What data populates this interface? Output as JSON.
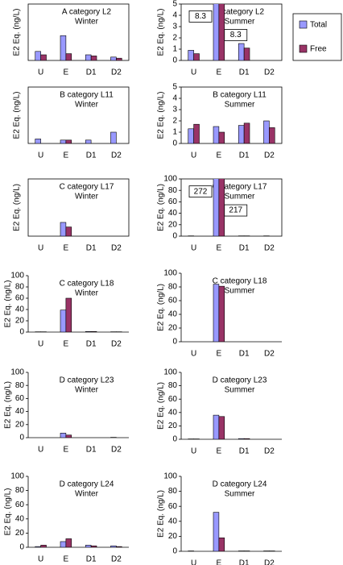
{
  "chart_data": [
    {
      "type": "bar",
      "title": "A category L2",
      "subtitle": "Winter",
      "ylabel": "E2 Eq. (ng/L)",
      "categories": [
        "U",
        "E",
        "D1",
        "D2"
      ],
      "ylim": [
        0,
        5
      ],
      "frame": true,
      "legend": "top-right",
      "series": [
        {
          "name": "Total",
          "color": "#9999ff",
          "values": [
            0.8,
            2.2,
            0.5,
            0.3
          ]
        },
        {
          "name": "Free",
          "color": "#993366",
          "values": [
            0.5,
            0.6,
            0.4,
            0.2
          ]
        }
      ]
    },
    {
      "type": "bar",
      "title": "A category L2",
      "subtitle": "Summer",
      "ylabel": "E2 Eq. (ng/L)",
      "categories": [
        "U",
        "E",
        "D1",
        "D2"
      ],
      "ylim": [
        0,
        5
      ],
      "yticks": [
        0,
        1,
        2,
        3,
        4,
        5
      ],
      "frame": true,
      "series": [
        {
          "color": "#9999ff",
          "values": [
            0.9,
            8.3,
            1.5,
            0
          ],
          "value_labels": [
            null,
            "8.3",
            null,
            null
          ]
        },
        {
          "color": "#993366",
          "values": [
            0.6,
            8.3,
            1.1,
            0
          ],
          "value_labels": [
            null,
            "8.3",
            null,
            null
          ]
        }
      ]
    },
    {
      "type": "bar",
      "title": "B category L11",
      "subtitle": "Winter",
      "ylabel": "E2 Eq. (ng/L)",
      "categories": [
        "U",
        "E",
        "D1",
        "D2"
      ],
      "ylim": [
        0,
        5
      ],
      "frame": true,
      "series": [
        {
          "color": "#9999ff",
          "values": [
            0.4,
            0.3,
            0.3,
            1.0
          ]
        },
        {
          "color": "#993366",
          "values": [
            0,
            0.3,
            0,
            0
          ]
        }
      ]
    },
    {
      "type": "bar",
      "title": "B category L11",
      "subtitle": "Summer",
      "ylabel": "E2 Eq. (ng/L)",
      "categories": [
        "U",
        "E",
        "D1",
        "D2"
      ],
      "ylim": [
        0,
        5
      ],
      "yticks": [
        0,
        1,
        2,
        3,
        4,
        5
      ],
      "frame": true,
      "series": [
        {
          "color": "#9999ff",
          "values": [
            1.3,
            1.5,
            1.6,
            2.0
          ]
        },
        {
          "color": "#993366",
          "values": [
            1.7,
            1.0,
            1.8,
            1.4
          ]
        }
      ]
    },
    {
      "type": "bar",
      "title": "C category L17",
      "subtitle": "Winter",
      "ylabel": "E2 Eq. (ng/L)",
      "categories": [
        "U",
        "E",
        "D1",
        "D2"
      ],
      "ylim": [
        0,
        100
      ],
      "frame": true,
      "series": [
        {
          "color": "#9999ff",
          "values": [
            0,
            24,
            0,
            0
          ]
        },
        {
          "color": "#993366",
          "values": [
            0,
            16,
            0,
            0
          ]
        }
      ]
    },
    {
      "type": "bar",
      "title": "C category L17",
      "subtitle": "Summer",
      "ylabel": "E2 Eq. (ng/L)",
      "categories": [
        "U",
        "E",
        "D1",
        "D2"
      ],
      "ylim": [
        0,
        100
      ],
      "yticks": [
        0,
        20,
        40,
        60,
        80,
        100
      ],
      "frame": true,
      "series": [
        {
          "color": "#9999ff",
          "values": [
            0.5,
            272,
            0.5,
            0.5
          ],
          "value_labels": [
            null,
            "272",
            null,
            null
          ]
        },
        {
          "color": "#993366",
          "values": [
            0,
            217,
            0.5,
            0
          ],
          "value_labels": [
            null,
            "217",
            null,
            null
          ]
        }
      ]
    },
    {
      "type": "bar",
      "title": "C category L18",
      "subtitle": "Winter",
      "ylabel": "E2 Eq. (ng/L)",
      "categories": [
        "U",
        "E",
        "D1",
        "D2"
      ],
      "ylim": [
        0,
        100
      ],
      "yticks": [
        0,
        20,
        40,
        60,
        80,
        100
      ],
      "frame": false,
      "series": [
        {
          "color": "#9999ff",
          "values": [
            0.5,
            39,
            1,
            0.5
          ]
        },
        {
          "color": "#993366",
          "values": [
            0.5,
            60,
            1,
            0.5
          ]
        }
      ]
    },
    {
      "type": "bar",
      "title": "C category L18",
      "subtitle": "Summer",
      "ylabel": "E2 Eq. (ng/L)",
      "categories": [
        "U",
        "E",
        "D1",
        "D2"
      ],
      "ylim": [
        0,
        100
      ],
      "yticks": [
        0,
        20,
        40,
        60,
        80,
        100
      ],
      "frame": false,
      "series": [
        {
          "color": "#9999ff",
          "values": [
            0,
            84,
            0,
            0
          ]
        },
        {
          "color": "#993366",
          "values": [
            0,
            81,
            0,
            0
          ]
        }
      ]
    },
    {
      "type": "bar",
      "title": "D category L23",
      "subtitle": "Winter",
      "ylabel": "E2 Eq. (ng/L)",
      "categories": [
        "U",
        "E",
        "D1",
        "D2"
      ],
      "ylim": [
        0,
        100
      ],
      "yticks": [
        0,
        20,
        40,
        60,
        80,
        100
      ],
      "frame": false,
      "series": [
        {
          "color": "#9999ff",
          "values": [
            0,
            7,
            0,
            0.5
          ]
        },
        {
          "color": "#993366",
          "values": [
            0,
            4,
            0,
            0
          ]
        }
      ]
    },
    {
      "type": "bar",
      "title": "D category L23",
      "subtitle": "Summer",
      "ylabel": "E2 Eq. (ng/L)",
      "categories": [
        "U",
        "E",
        "D1",
        "D2"
      ],
      "ylim": [
        0,
        100
      ],
      "yticks": [
        0,
        20,
        40,
        60,
        80,
        100
      ],
      "frame": false,
      "series": [
        {
          "color": "#9999ff",
          "values": [
            0.5,
            36,
            1,
            0
          ]
        },
        {
          "color": "#993366",
          "values": [
            0.5,
            34,
            1,
            0
          ]
        }
      ]
    },
    {
      "type": "bar",
      "title": "D category L24",
      "subtitle": "Winter",
      "ylabel": "E2 Eq. (ng/L)",
      "categories": [
        "U",
        "E",
        "D1",
        "D2"
      ],
      "ylim": [
        0,
        100
      ],
      "yticks": [
        0,
        20,
        40,
        60,
        80,
        100
      ],
      "frame": false,
      "series": [
        {
          "color": "#9999ff",
          "values": [
            1,
            8,
            3,
            2
          ]
        },
        {
          "color": "#993366",
          "values": [
            3,
            12,
            2,
            1
          ]
        }
      ]
    },
    {
      "type": "bar",
      "title": "D category L24",
      "subtitle": "Summer",
      "ylabel": "E2 Eq. (ng/L)",
      "categories": [
        "U",
        "E",
        "D1",
        "D2"
      ],
      "ylim": [
        0,
        100
      ],
      "yticks": [
        0,
        20,
        40,
        60,
        80,
        100
      ],
      "frame": false,
      "series": [
        {
          "color": "#9999ff",
          "values": [
            0.5,
            52,
            0.5,
            0.5
          ]
        },
        {
          "color": "#993366",
          "values": [
            0,
            18,
            0.5,
            0.5
          ]
        }
      ]
    }
  ]
}
